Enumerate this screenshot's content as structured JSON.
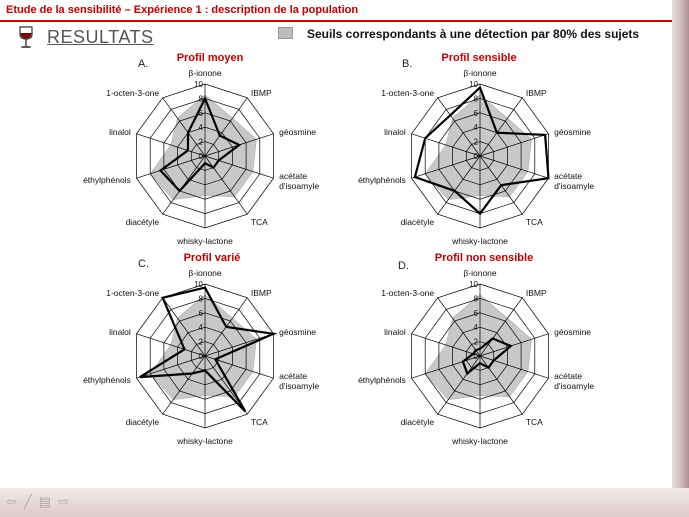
{
  "header": {
    "title": "Etude de la sensibilité – Expérience 1 : description de la population"
  },
  "section_title": "RESULTATS",
  "legend": {
    "label": "Seuils correspondants à une détection par 80% des sujets",
    "color": "#bdbdbd"
  },
  "colors": {
    "accent": "#c00000",
    "threshold_fill": "#c8c8c8",
    "profile_line": "#000000",
    "grid": "#000000"
  },
  "nav_icons": [
    "arrow-left-icon",
    "pen-icon",
    "screen-icon",
    "arrow-right-icon"
  ],
  "chart_data": [
    {
      "type": "radar",
      "letter": "A.",
      "title": "Profil moyen",
      "rlim": [
        0,
        10
      ],
      "ticks": [
        "0",
        "2",
        "4",
        "6",
        "8",
        "10"
      ],
      "axes": [
        "β-ionone",
        "IBMP",
        "géosmine",
        "acétate d'isoamyle",
        "TCA",
        "whisky-lactone",
        "diacétyle",
        "éthylphénols",
        "linalol",
        "1-octen-3-one"
      ],
      "series": [
        {
          "values": [
            8,
            3.5,
            5,
            2,
            2,
            1,
            6,
            6.5,
            2.5,
            4
          ]
        },
        {
          "values": [
            8.5,
            6.5,
            7.5,
            7,
            7,
            5.5,
            7.5,
            8,
            5,
            6.5
          ]
        }
      ]
    },
    {
      "type": "radar",
      "letter": "B.",
      "title": "Profil sensible",
      "rlim": [
        0,
        10
      ],
      "ticks": [
        "0",
        "2",
        "4",
        "6",
        "8",
        "10"
      ],
      "axes": [
        "β-ionone",
        "IBMP",
        "géosmine",
        "acétate d'isoamyle",
        "TCA",
        "whisky-lactone",
        "diacétyle",
        "éthylphénols",
        "linalol",
        "1-octen-3-one"
      ],
      "series": [
        {
          "values": [
            9.5,
            4,
            9.5,
            10,
            5,
            8,
            6,
            9.5,
            8,
            7
          ]
        },
        {
          "values": [
            8.5,
            6.5,
            7.5,
            7,
            7,
            5.5,
            7.5,
            8,
            5,
            6.5
          ]
        }
      ]
    },
    {
      "type": "radar",
      "letter": "C.",
      "title": "Profil varié",
      "rlim": [
        0,
        10
      ],
      "ticks": [
        "0",
        "2",
        "4",
        "6",
        "8",
        "10"
      ],
      "axes": [
        "β-ionone",
        "IBMP",
        "géosmine",
        "acétate d'isoamyle",
        "TCA",
        "whisky-lactone",
        "diacétyle",
        "éthylphénols",
        "linalol",
        "1-octen-3-one"
      ],
      "series": [
        {
          "values": [
            9.5,
            5,
            10,
            1.5,
            9.5,
            2,
            3,
            9.5,
            3,
            10
          ]
        },
        {
          "values": [
            8.5,
            6.5,
            7.5,
            7,
            7,
            5.5,
            7.5,
            8,
            5,
            6.5
          ]
        }
      ]
    },
    {
      "type": "radar",
      "letter": "D.",
      "title": "Profil non sensible",
      "rlim": [
        0,
        10
      ],
      "ticks": [
        "0",
        "2",
        "4",
        "6",
        "8",
        "10"
      ],
      "axes": [
        "β-ionone",
        "IBMP",
        "géosmine",
        "acétate d'isoamyle",
        "TCA",
        "whisky-lactone",
        "diacétyle",
        "éthylphénols",
        "linalol",
        "1-octen-3-one"
      ],
      "series": [
        {
          "values": [
            1,
            3,
            4.5,
            2,
            2,
            1,
            3,
            2.5,
            1,
            1
          ]
        },
        {
          "values": [
            8.5,
            6.5,
            7.5,
            7,
            7,
            5.5,
            7.5,
            8,
            5,
            6.5
          ]
        }
      ]
    }
  ]
}
